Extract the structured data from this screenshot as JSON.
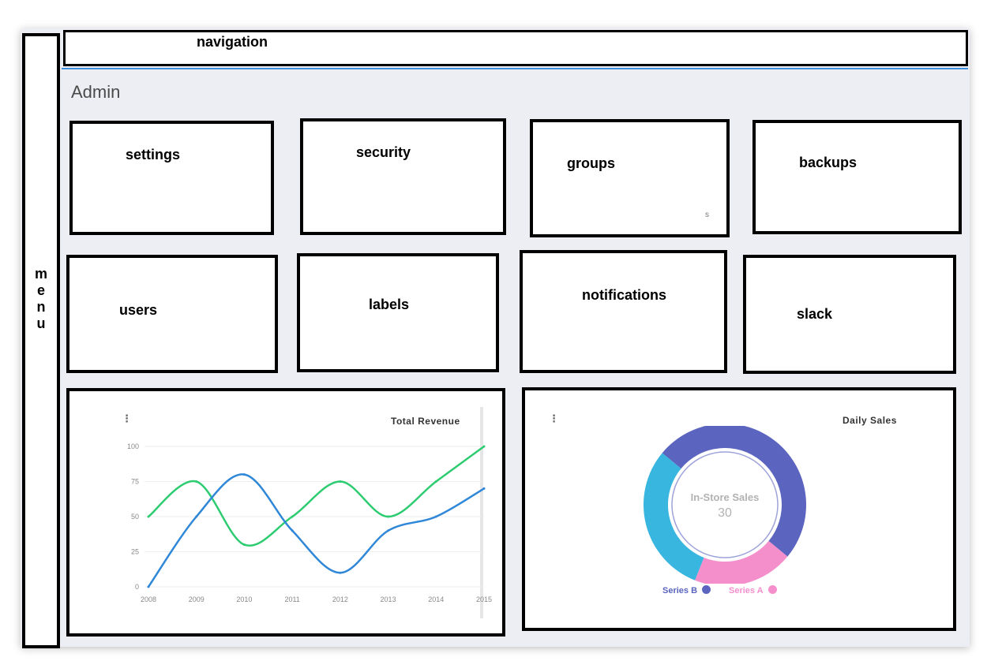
{
  "app": {
    "page_title": "Admin",
    "navigation_label": "navigation",
    "menu_label": [
      "m",
      "e",
      "n",
      "u"
    ]
  },
  "tiles": [
    {
      "id": "settings",
      "label": "settings"
    },
    {
      "id": "security",
      "label": "security"
    },
    {
      "id": "groups",
      "label": "groups",
      "note": "s"
    },
    {
      "id": "backups",
      "label": "backups"
    },
    {
      "id": "users",
      "label": "users"
    },
    {
      "id": "labels",
      "label": "labels"
    },
    {
      "id": "notifications",
      "label": "notifications"
    },
    {
      "id": "slack",
      "label": "slack"
    }
  ],
  "colors": {
    "series_green": "#2ecc71",
    "series_blue": "#2f87d8",
    "donut_series_b": "#5b65c0",
    "donut_series_a": "#f48fcc",
    "donut_other": "#38b6e0"
  },
  "icons": {
    "chart_menu": "kebab-menu-icon"
  },
  "chart_data": [
    {
      "type": "line",
      "title": "Total Revenue",
      "xlabel": "",
      "ylabel": "",
      "x": [
        "2008",
        "2009",
        "2010",
        "2011",
        "2012",
        "2013",
        "2014",
        "2015"
      ],
      "yticks": [
        "0",
        "25",
        "50",
        "75",
        "100"
      ],
      "ylim": [
        0,
        100
      ],
      "grid": true,
      "series": [
        {
          "values": [
            50,
            75,
            30,
            50,
            75,
            50,
            75,
            100
          ],
          "color": "#2ecc71"
        },
        {
          "values": [
            0,
            50,
            80,
            40,
            10,
            40,
            50,
            70
          ],
          "color": "#2f87d8"
        }
      ]
    },
    {
      "type": "pie",
      "title": "Daily Sales",
      "center_label": "In-Store Sales",
      "center_value": "30",
      "slices": [
        {
          "name": "Series B",
          "value": 50,
          "color": "#5b65c0"
        },
        {
          "name": "Series A",
          "value": 20,
          "color": "#f48fcc"
        },
        {
          "name": "In-Store Sales",
          "value": 30,
          "color": "#38b6e0"
        }
      ],
      "legend": [
        "Series B",
        "Series A"
      ],
      "legend_position": "bottom"
    }
  ]
}
